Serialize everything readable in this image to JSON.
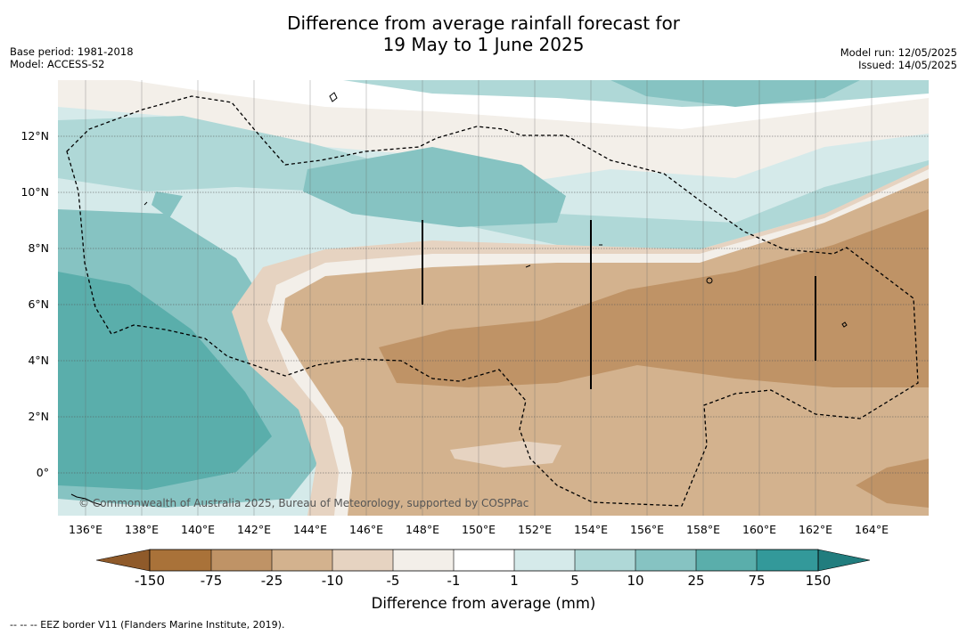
{
  "title": {
    "line1": "Difference from average rainfall forecast for",
    "line2": "19 May to 1 June 2025"
  },
  "meta": {
    "base_period": "Base period: 1981-2018",
    "model": "Model: ACCESS-S2",
    "model_run": "Model run: 12/05/2025",
    "issued": "Issued: 14/05/2025"
  },
  "map": {
    "lat_ticks": [
      "12°N",
      "10°N",
      "8°N",
      "6°N",
      "4°N",
      "2°N",
      "0°"
    ],
    "lon_ticks": [
      "136°E",
      "138°E",
      "140°E",
      "142°E",
      "144°E",
      "146°E",
      "148°E",
      "150°E",
      "152°E",
      "154°E",
      "156°E",
      "158°E",
      "160°E",
      "162°E",
      "164°E"
    ],
    "credit": "© Commonwealth of Australia 2025, Bureau of Meteorology, supported by COSPPac"
  },
  "colorbar": {
    "ticks": [
      "-150",
      "-75",
      "-25",
      "-10",
      "-5",
      "-1",
      "1",
      "5",
      "10",
      "25",
      "75",
      "150"
    ],
    "colors": [
      "#8f5a2a",
      "#a97239",
      "#bf9366",
      "#d3b28e",
      "#e6d3c1",
      "#f3efe9",
      "#ffffff",
      "#d5eaea",
      "#afd8d7",
      "#86c3c2",
      "#5aaeab",
      "#33999a",
      "#217d7e"
    ],
    "label": "Difference from average (mm)"
  },
  "footer": {
    "eez_note": "--  --  -- EEZ border V11 (Flanders Marine Institute, 2019)."
  }
}
